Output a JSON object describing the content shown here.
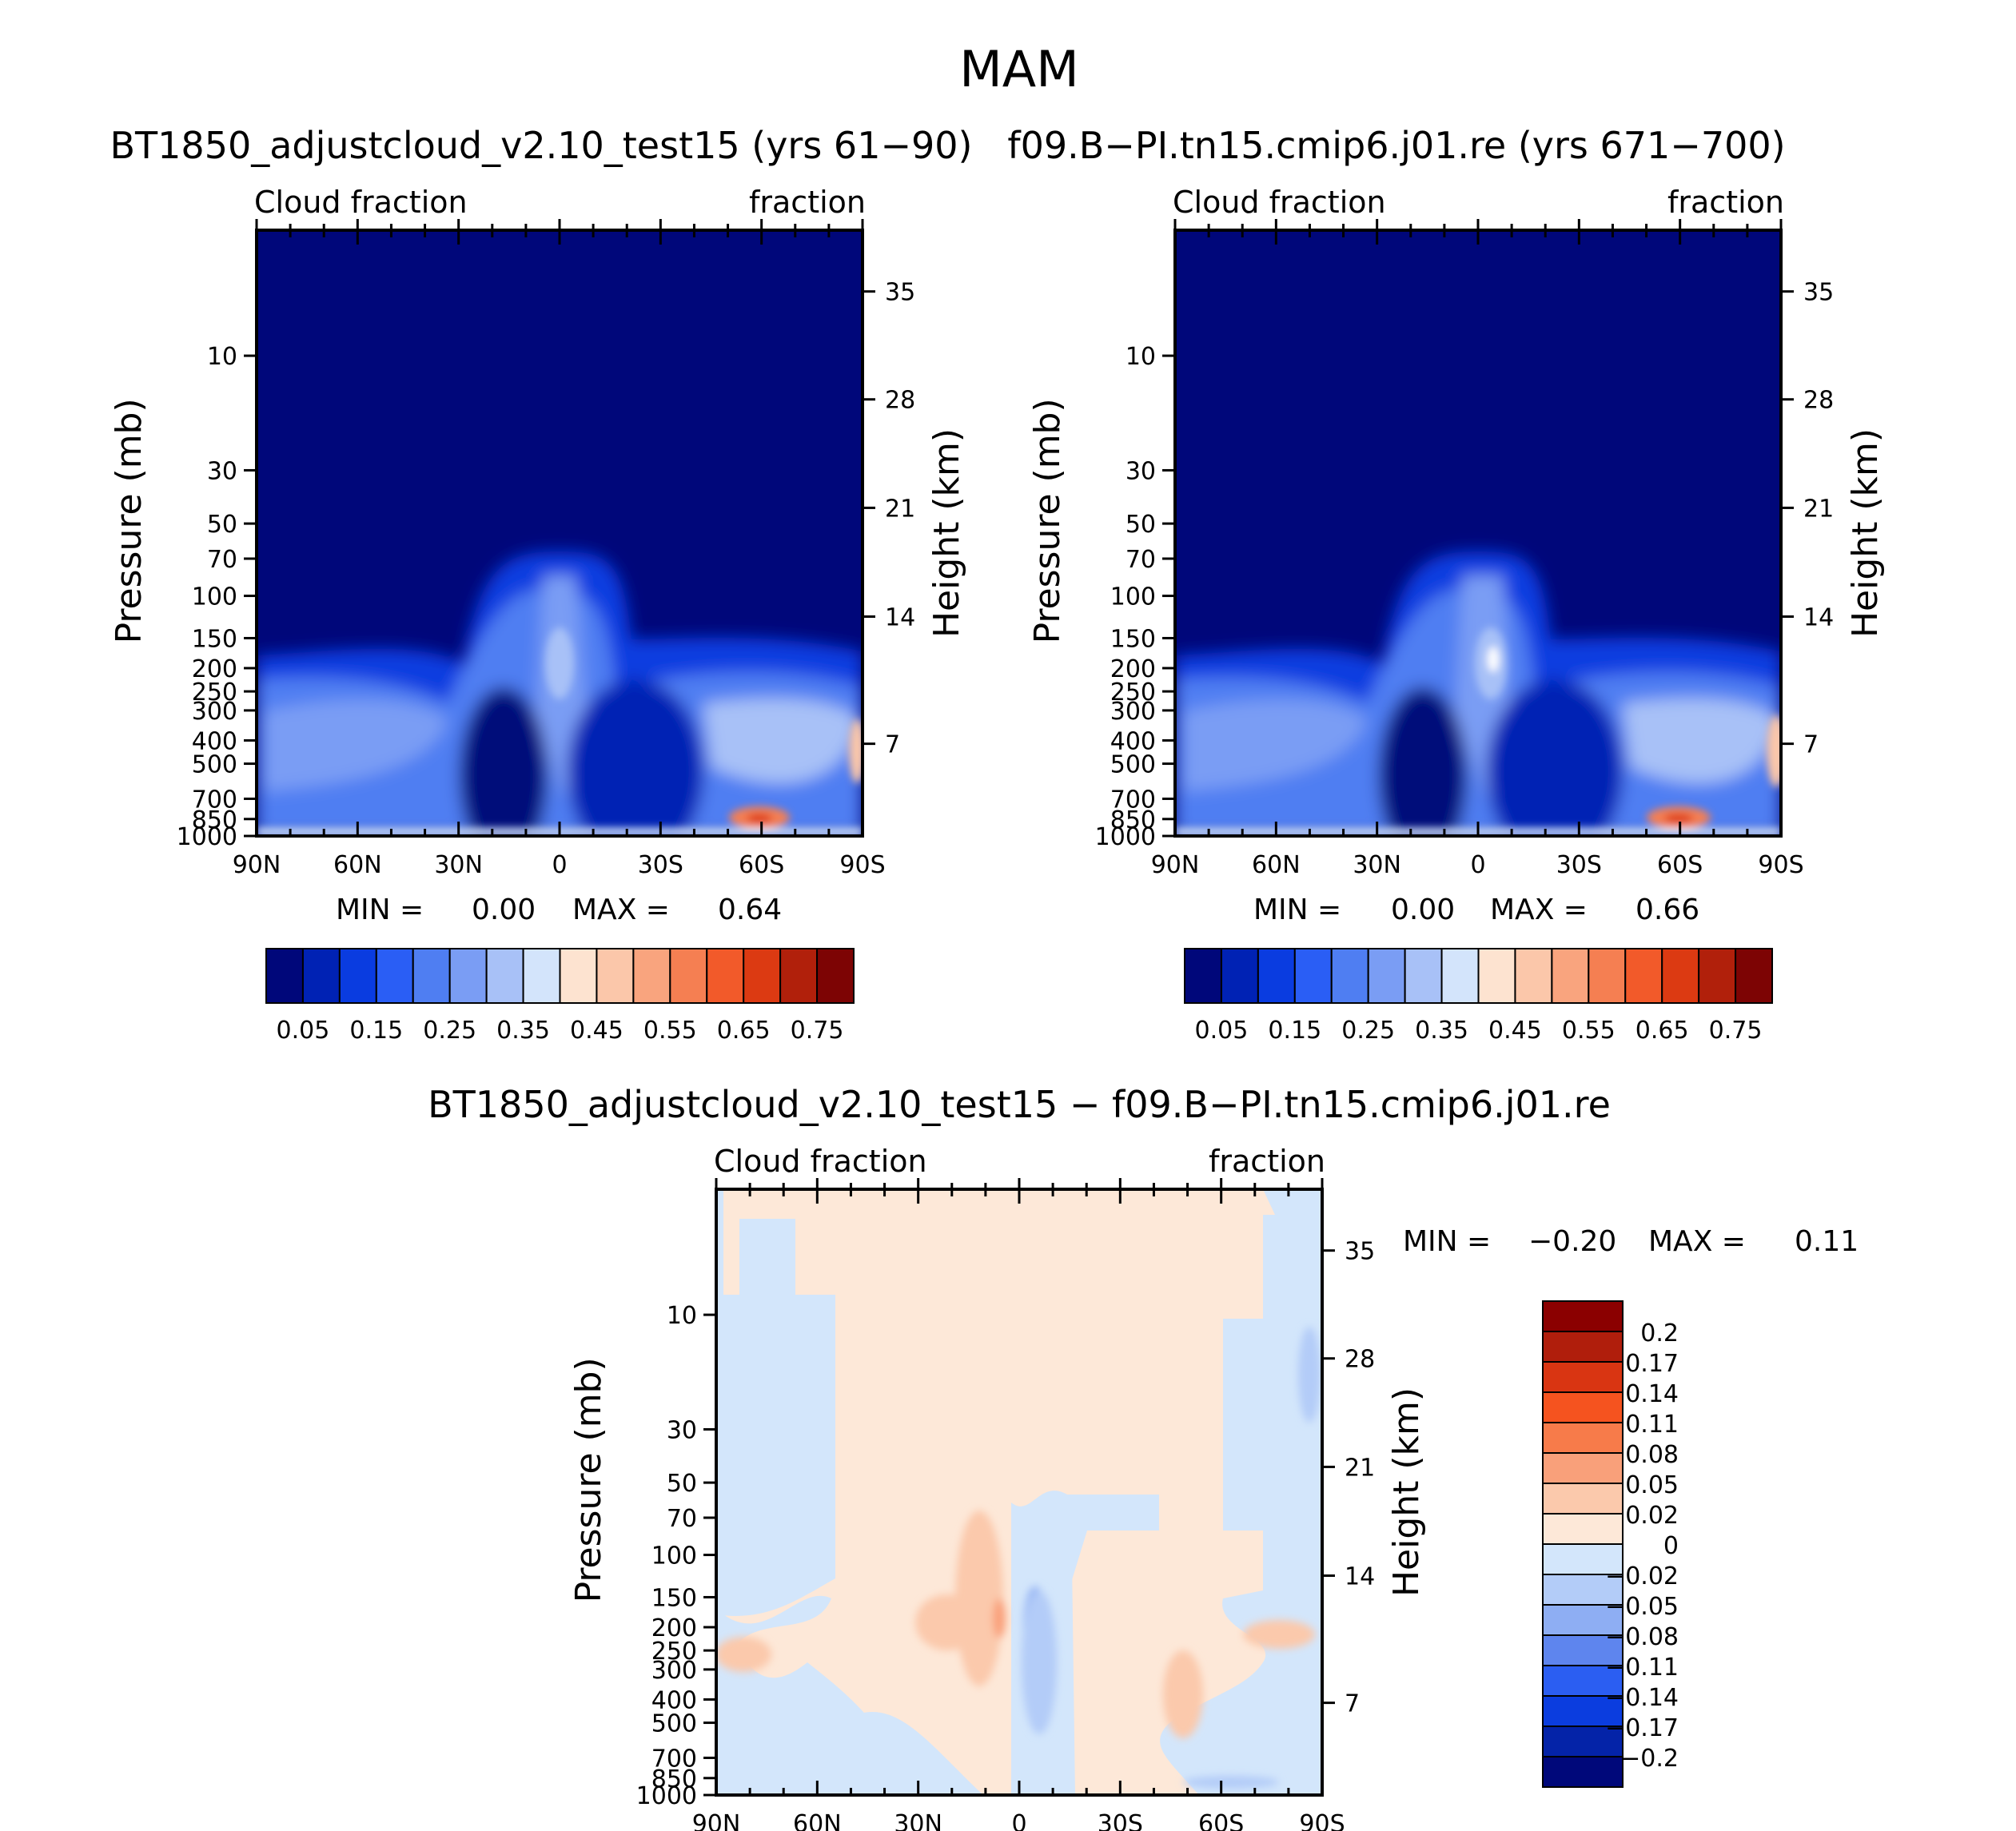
{
  "chart_data": [
    {
      "type": "contour",
      "panel": "top-left",
      "figure_title": "MAM",
      "title": "BT1850_adjustcloud_v2.10_test15 (yrs 61−90)",
      "left_label": "Cloud fraction",
      "right_label": "fraction",
      "ylabel": "Pressure (mb)",
      "ylabel_right": "Height (km)",
      "x_ticks": [
        "90N",
        "60N",
        "30N",
        "0",
        "30S",
        "60S",
        "90S"
      ],
      "y_ticks": [
        "10",
        "30",
        "50",
        "70",
        "100",
        "150",
        "200",
        "250",
        "300",
        "400",
        "500",
        "700",
        "850",
        "1000"
      ],
      "height_ticks": [
        "35",
        "28",
        "21",
        "14",
        "7"
      ],
      "ylim_mb": [
        1000,
        3
      ],
      "min_label": "MIN =",
      "min_value": "0.00",
      "max_label": "MAX =",
      "max_value": "0.64",
      "colorbar_labels": [
        "0.05",
        "0.15",
        "0.25",
        "0.35",
        "0.45",
        "0.55",
        "0.65",
        "0.75"
      ],
      "colorbar_colors": [
        "#00077a",
        "#0022b4",
        "#0a3ce0",
        "#2a5ef5",
        "#4f7ef2",
        "#7a9df4",
        "#a8c1f7",
        "#d3e4fb",
        "#fde3d0",
        "#fbc7aa",
        "#f9a47e",
        "#f57f52",
        "#f25a2a",
        "#dc3a12",
        "#b1200b",
        "#7d0404"
      ]
    },
    {
      "type": "contour",
      "panel": "top-right",
      "title": "f09.B−PI.tn15.cmip6.j01.re (yrs 671−700)",
      "left_label": "Cloud fraction",
      "right_label": "fraction",
      "ylabel": "Pressure (mb)",
      "ylabel_right": "Height (km)",
      "x_ticks": [
        "90N",
        "60N",
        "30N",
        "0",
        "30S",
        "60S",
        "90S"
      ],
      "y_ticks": [
        "10",
        "30",
        "50",
        "70",
        "100",
        "150",
        "200",
        "250",
        "300",
        "400",
        "500",
        "700",
        "850",
        "1000"
      ],
      "height_ticks": [
        "35",
        "28",
        "21",
        "14",
        "7"
      ],
      "min_label": "MIN =",
      "min_value": "0.00",
      "max_label": "MAX =",
      "max_value": "0.66",
      "colorbar_labels": [
        "0.05",
        "0.15",
        "0.25",
        "0.35",
        "0.45",
        "0.55",
        "0.65",
        "0.75"
      ]
    },
    {
      "type": "contour",
      "panel": "bottom",
      "title": "BT1850_adjustcloud_v2.10_test15 − f09.B−PI.tn15.cmip6.j01.re",
      "left_label": "Cloud fraction",
      "right_label": "fraction",
      "ylabel": "Pressure (mb)",
      "ylabel_right": "Height (km)",
      "x_ticks": [
        "90N",
        "60N",
        "30N",
        "0",
        "30S",
        "60S",
        "90S"
      ],
      "y_ticks": [
        "10",
        "30",
        "50",
        "70",
        "100",
        "150",
        "200",
        "250",
        "300",
        "400",
        "500",
        "700",
        "850",
        "1000"
      ],
      "height_ticks": [
        "35",
        "28",
        "21",
        "14",
        "7"
      ],
      "min_label": "MIN =",
      "min_value": "−0.20",
      "max_label": "MAX =",
      "max_value": "0.11",
      "colorbar_labels": [
        "0.2",
        "0.17",
        "0.14",
        "0.11",
        "0.08",
        "0.05",
        "0.02",
        "0",
        "−0.02",
        "−0.05",
        "−0.08",
        "−0.11",
        "−0.14",
        "−0.17",
        "−0.2"
      ],
      "colorbar_colors": [
        "#8b0000",
        "#b01e0c",
        "#d93512",
        "#f5531f",
        "#f77b4a",
        "#f9a07a",
        "#fbc9ac",
        "#fde8d8",
        "#d3e6fb",
        "#b3ccf8",
        "#8eaef3",
        "#5e85ee",
        "#2b5ef2",
        "#0b3ddf",
        "#0423a8",
        "#00087a"
      ]
    }
  ]
}
